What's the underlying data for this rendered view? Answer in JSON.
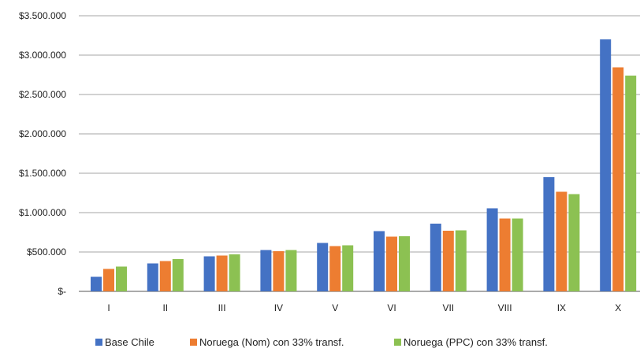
{
  "chart_data": {
    "type": "bar",
    "categories": [
      "I",
      "II",
      "III",
      "IV",
      "V",
      "VI",
      "VII",
      "VIII",
      "IX",
      "X"
    ],
    "series": [
      {
        "name": "Base Chile",
        "color": "#4472C4",
        "values": [
          185000,
          355000,
          445000,
          525000,
          615000,
          765000,
          860000,
          1055000,
          1450000,
          3200000
        ]
      },
      {
        "name": "Noruega (Nom) con 33% transf.",
        "color": "#ED7D31",
        "values": [
          285000,
          385000,
          455000,
          510000,
          575000,
          695000,
          770000,
          925000,
          1265000,
          2845000
        ]
      },
      {
        "name": "Noruega (PPC) con 33% transf.",
        "color": "#8CC152",
        "values": [
          315000,
          410000,
          470000,
          525000,
          585000,
          700000,
          775000,
          925000,
          1235000,
          2740000
        ]
      }
    ],
    "y_ticks": [
      {
        "value": 0,
        "label": "$-"
      },
      {
        "value": 500000,
        "label": "$500.000"
      },
      {
        "value": 1000000,
        "label": "$1.000.000"
      },
      {
        "value": 1500000,
        "label": "$1.500.000"
      },
      {
        "value": 2000000,
        "label": "$2.000.000"
      },
      {
        "value": 2500000,
        "label": "$2.500.000"
      },
      {
        "value": 3000000,
        "label": "$3.000.000"
      },
      {
        "value": 3500000,
        "label": "$3.500.000"
      }
    ],
    "ylim": [
      0,
      3500000
    ],
    "grid": true,
    "legend_position": "bottom"
  }
}
